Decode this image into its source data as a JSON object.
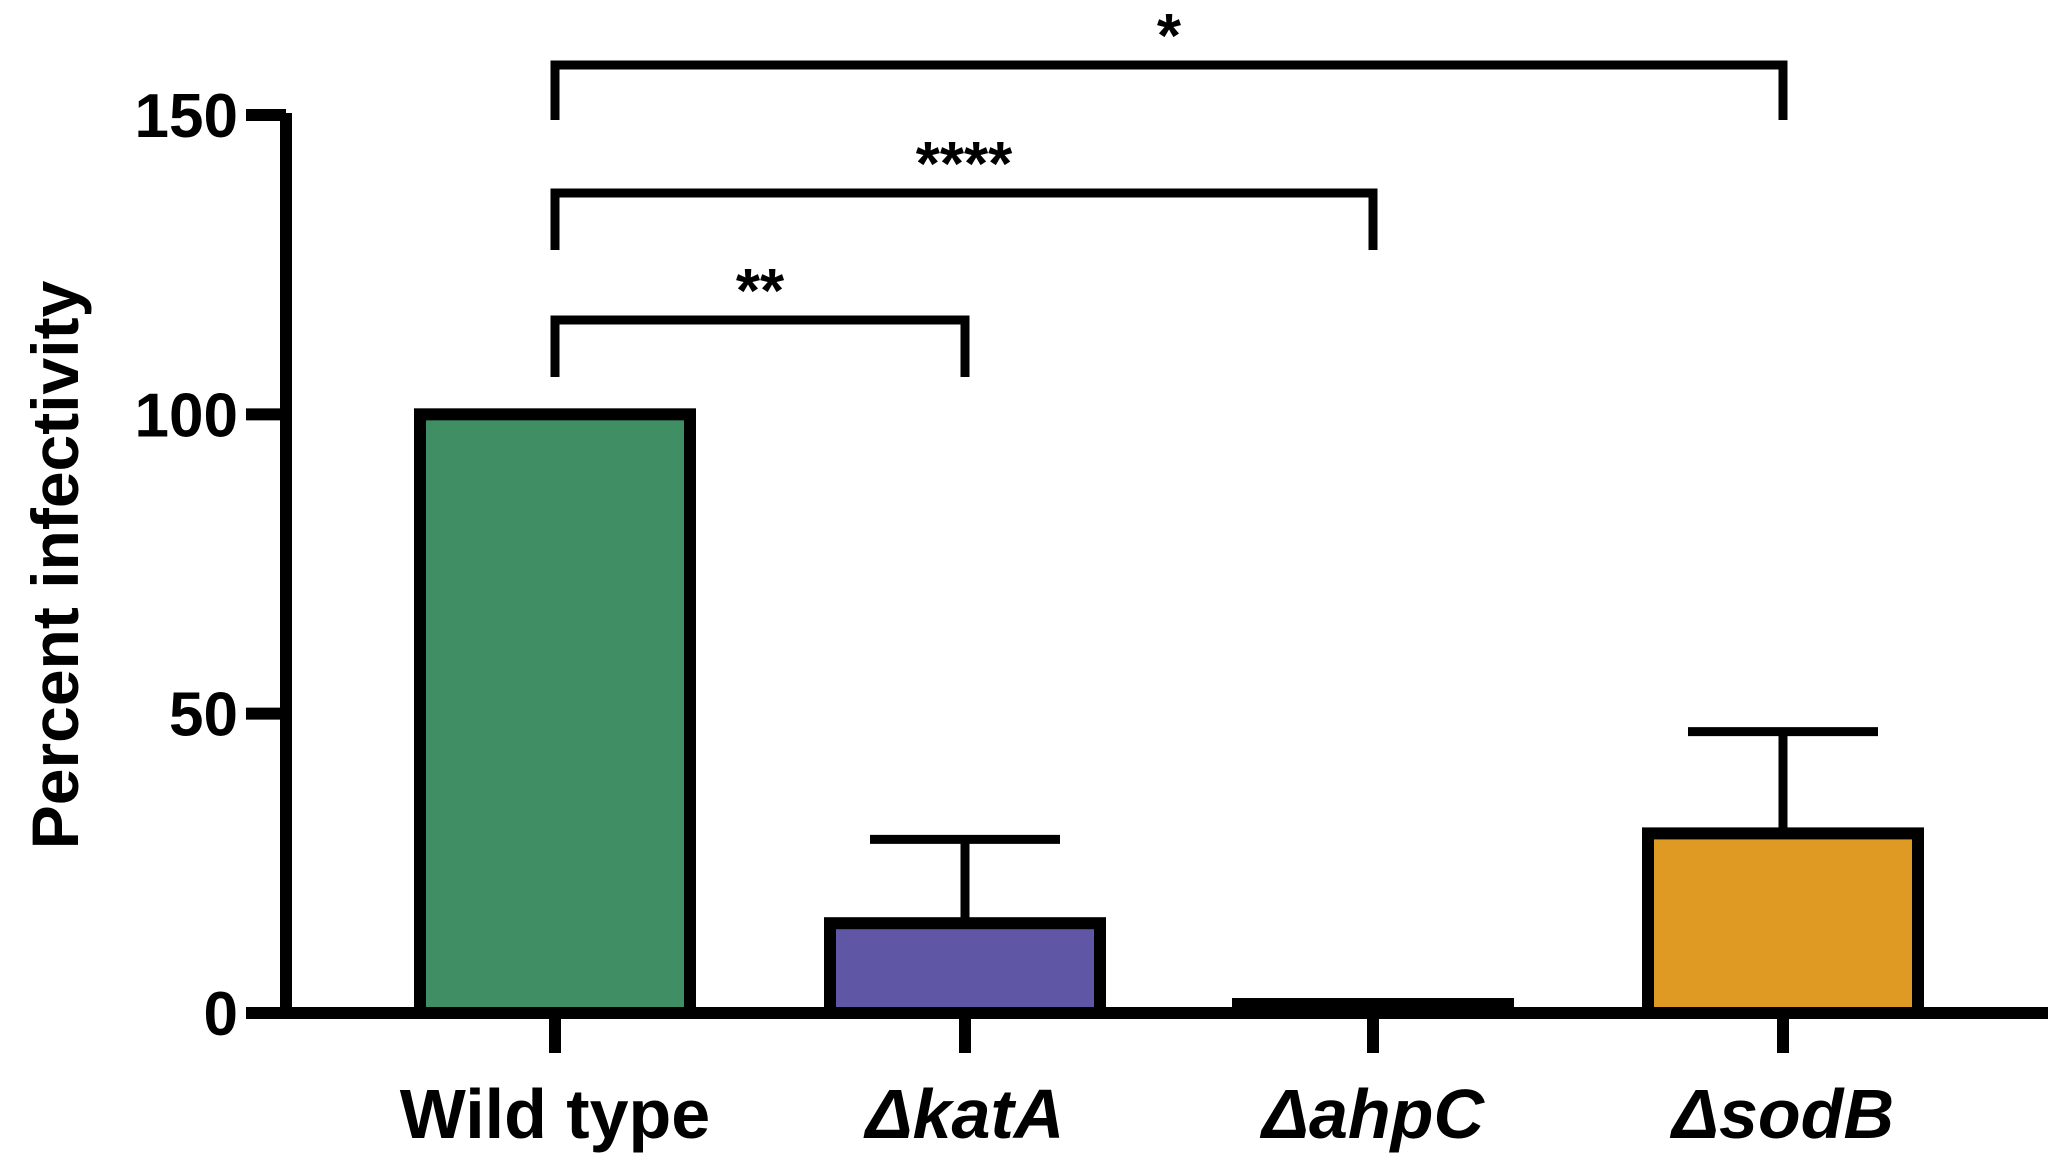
{
  "chart_data": {
    "type": "bar",
    "title": "",
    "xlabel": "",
    "ylabel": "Percent infectivity",
    "ylim": [
      0,
      150
    ],
    "yticks": [
      0,
      50,
      100,
      150
    ],
    "grid": false,
    "categories": [
      "Wild type",
      "ΔkatA",
      "ΔahpC",
      "ΔsodB"
    ],
    "category_italic": [
      false,
      true,
      true,
      true
    ],
    "values": [
      100,
      15,
      1.5,
      30
    ],
    "error_upper": [
      null,
      29,
      null,
      47
    ],
    "colors": [
      "#408E63",
      "#5F57A6",
      "#000000",
      "#DF9A24"
    ],
    "significance": [
      {
        "from": 0,
        "to": 1,
        "label": "**"
      },
      {
        "from": 0,
        "to": 2,
        "label": "****"
      },
      {
        "from": 0,
        "to": 3,
        "label": "*"
      }
    ]
  }
}
